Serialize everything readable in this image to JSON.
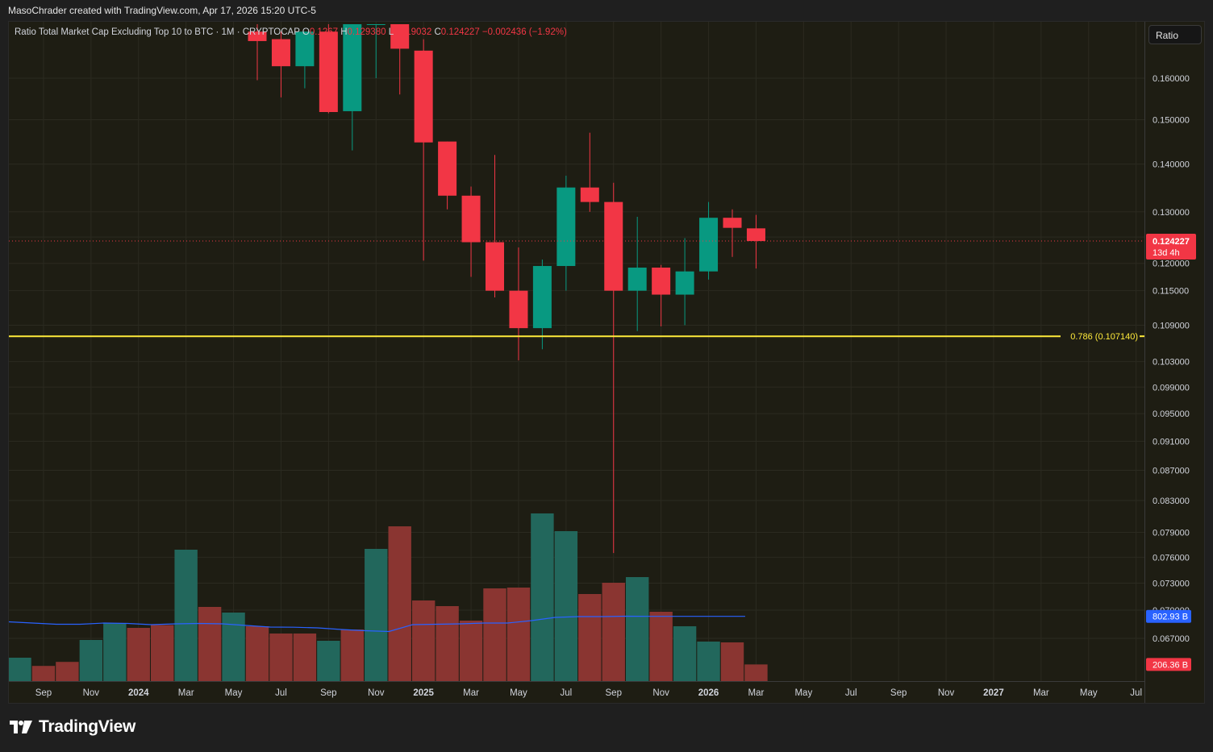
{
  "header": {
    "attribution": "MasoChrader created with TradingView.com, Apr 17, 2026 15:20 UTC-5"
  },
  "legend": {
    "symbol": "Ratio Total Market Cap Excluding Top 10 to BTC · 1M · CRYPTOCAP",
    "open_label": "O",
    "open_value": "0.1267",
    "high_label": "H",
    "high_value": "0.129380",
    "low_label": "L",
    "low_value": "0.119032",
    "close_label": "C",
    "close_value": "0.124227",
    "change": "−0.002436 (−1.92%)"
  },
  "scale_button": {
    "label": "Ratio"
  },
  "price_badge": {
    "value": "0.124227",
    "countdown": "13d 4h"
  },
  "volume_badges": {
    "ma_value": "802.93 B",
    "volume_value": "206.36 B"
  },
  "fib_label": "0.786 (0.107140)",
  "logo_text": "TradingView",
  "colors": {
    "up": "#089981",
    "down": "#f23645",
    "vol_up": "#22675c",
    "vol_down": "#8a3531",
    "ma": "#2962ff",
    "fib": "#ffeb3b",
    "background": "#1e1d13"
  },
  "chart_data": {
    "type": "candlestick",
    "timeframe": "1M",
    "y_scale": "log",
    "y_ticks": [
      0.16,
      0.15,
      0.14,
      0.13,
      0.125,
      0.12,
      0.115,
      0.109,
      0.103,
      0.099,
      0.095,
      0.091,
      0.087,
      0.083,
      0.079,
      0.076,
      0.073,
      0.07,
      0.067
    ],
    "x_ticks": [
      "Sep",
      "Nov",
      "2024",
      "Mar",
      "May",
      "Jul",
      "Sep",
      "Nov",
      "2025",
      "Mar",
      "May",
      "Jul",
      "Sep",
      "Nov",
      "2026",
      "Mar",
      "May",
      "Jul",
      "Sep",
      "Nov",
      "2027",
      "Mar",
      "May",
      "Jul"
    ],
    "bold_ticks": [
      "2024",
      "2025",
      "2026",
      "2027"
    ],
    "candles": [
      {
        "date": "2024-06",
        "o": 0.172,
        "h": 0.174,
        "l": 0.1595,
        "c": 0.1695
      },
      {
        "date": "2024-07",
        "o": 0.17,
        "h": 0.172,
        "l": 0.1553,
        "c": 0.163
      },
      {
        "date": "2024-08",
        "o": 0.163,
        "h": 0.172,
        "l": 0.1575,
        "c": 0.172
      },
      {
        "date": "2024-09",
        "o": 0.172,
        "h": 0.174,
        "l": 0.1515,
        "c": 0.1518
      },
      {
        "date": "2024-10",
        "o": 0.152,
        "h": 0.174,
        "l": 0.143,
        "c": 0.174
      },
      {
        "date": "2024-11",
        "o": 0.174,
        "h": 0.174,
        "l": 0.16,
        "c": 0.174
      },
      {
        "date": "2024-12",
        "o": 0.174,
        "h": 0.174,
        "l": 0.156,
        "c": 0.1675
      },
      {
        "date": "2025-01",
        "o": 0.167,
        "h": 0.17,
        "l": 0.1205,
        "c": 0.1448
      },
      {
        "date": "2025-02",
        "o": 0.145,
        "h": 0.145,
        "l": 0.1305,
        "c": 0.1333
      },
      {
        "date": "2025-03",
        "o": 0.1333,
        "h": 0.1352,
        "l": 0.1175,
        "c": 0.124
      },
      {
        "date": "2025-04",
        "o": 0.124,
        "h": 0.142,
        "l": 0.1138,
        "c": 0.115
      },
      {
        "date": "2025-05",
        "o": 0.115,
        "h": 0.123,
        "l": 0.1032,
        "c": 0.1085
      },
      {
        "date": "2025-06",
        "o": 0.1085,
        "h": 0.1207,
        "l": 0.105,
        "c": 0.1195
      },
      {
        "date": "2025-07",
        "o": 0.1195,
        "h": 0.1375,
        "l": 0.115,
        "c": 0.135
      },
      {
        "date": "2025-08",
        "o": 0.135,
        "h": 0.147,
        "l": 0.13,
        "c": 0.132
      },
      {
        "date": "2025-09",
        "o": 0.132,
        "h": 0.136,
        "l": 0.0765,
        "c": 0.115
      },
      {
        "date": "2025-10",
        "o": 0.115,
        "h": 0.129,
        "l": 0.108,
        "c": 0.1192
      },
      {
        "date": "2025-11",
        "o": 0.1192,
        "h": 0.1197,
        "l": 0.1088,
        "c": 0.1143
      },
      {
        "date": "2025-12",
        "o": 0.1143,
        "h": 0.1248,
        "l": 0.109,
        "c": 0.1185
      },
      {
        "date": "2026-01",
        "o": 0.1185,
        "h": 0.132,
        "l": 0.117,
        "c": 0.1288
      },
      {
        "date": "2026-02",
        "o": 0.1288,
        "h": 0.1305,
        "l": 0.1212,
        "c": 0.1268
      },
      {
        "date": "2026-03",
        "o": 0.1267,
        "h": 0.12938,
        "l": 0.119032,
        "c": 0.124227
      }
    ],
    "volume_series": {
      "name": "Volume",
      "months": [
        "2023-08",
        "2023-09",
        "2023-10",
        "2023-11",
        "2023-12",
        "2024-01",
        "2024-02",
        "2024-03",
        "2024-04",
        "2024-05",
        "2024-06",
        "2024-07",
        "2024-08",
        "2024-09",
        "2024-10",
        "2024-11",
        "2024-12",
        "2025-01",
        "2025-02",
        "2025-03",
        "2025-04",
        "2025-05",
        "2025-06",
        "2025-07",
        "2025-08",
        "2025-09",
        "2025-10",
        "2025-11",
        "2025-12",
        "2026-01",
        "2026-02",
        "2026-03"
      ],
      "values": [
        290,
        188,
        238,
        510,
        720,
        660,
        695,
        1630,
        920,
        850,
        680,
        590,
        590,
        500,
        640,
        1640,
        1920,
        1000,
        930,
        750,
        1150,
        1160,
        2080,
        1860,
        1080,
        1220,
        1290,
        860,
        680,
        490,
        480,
        206.36
      ],
      "direction": [
        "up",
        "down",
        "down",
        "up",
        "up",
        "down",
        "down",
        "up",
        "down",
        "up",
        "down",
        "down",
        "down",
        "up",
        "down",
        "up",
        "down",
        "down",
        "down",
        "down",
        "down",
        "down",
        "up",
        "up",
        "down",
        "down",
        "up",
        "down",
        "up",
        "up",
        "down",
        "down"
      ]
    },
    "volume_ma": {
      "name": "Volume MA",
      "values": [
        735,
        720,
        705,
        705,
        720,
        715,
        700,
        710,
        715,
        710,
        690,
        670,
        668,
        660,
        640,
        625,
        615,
        700,
        705,
        710,
        720,
        720,
        750,
        790,
        800,
        800,
        805,
        803,
        803,
        803,
        803,
        802.93
      ]
    },
    "fib_level": {
      "ratio": 0.786,
      "value": 0.10714
    },
    "last_price": 0.124227
  }
}
